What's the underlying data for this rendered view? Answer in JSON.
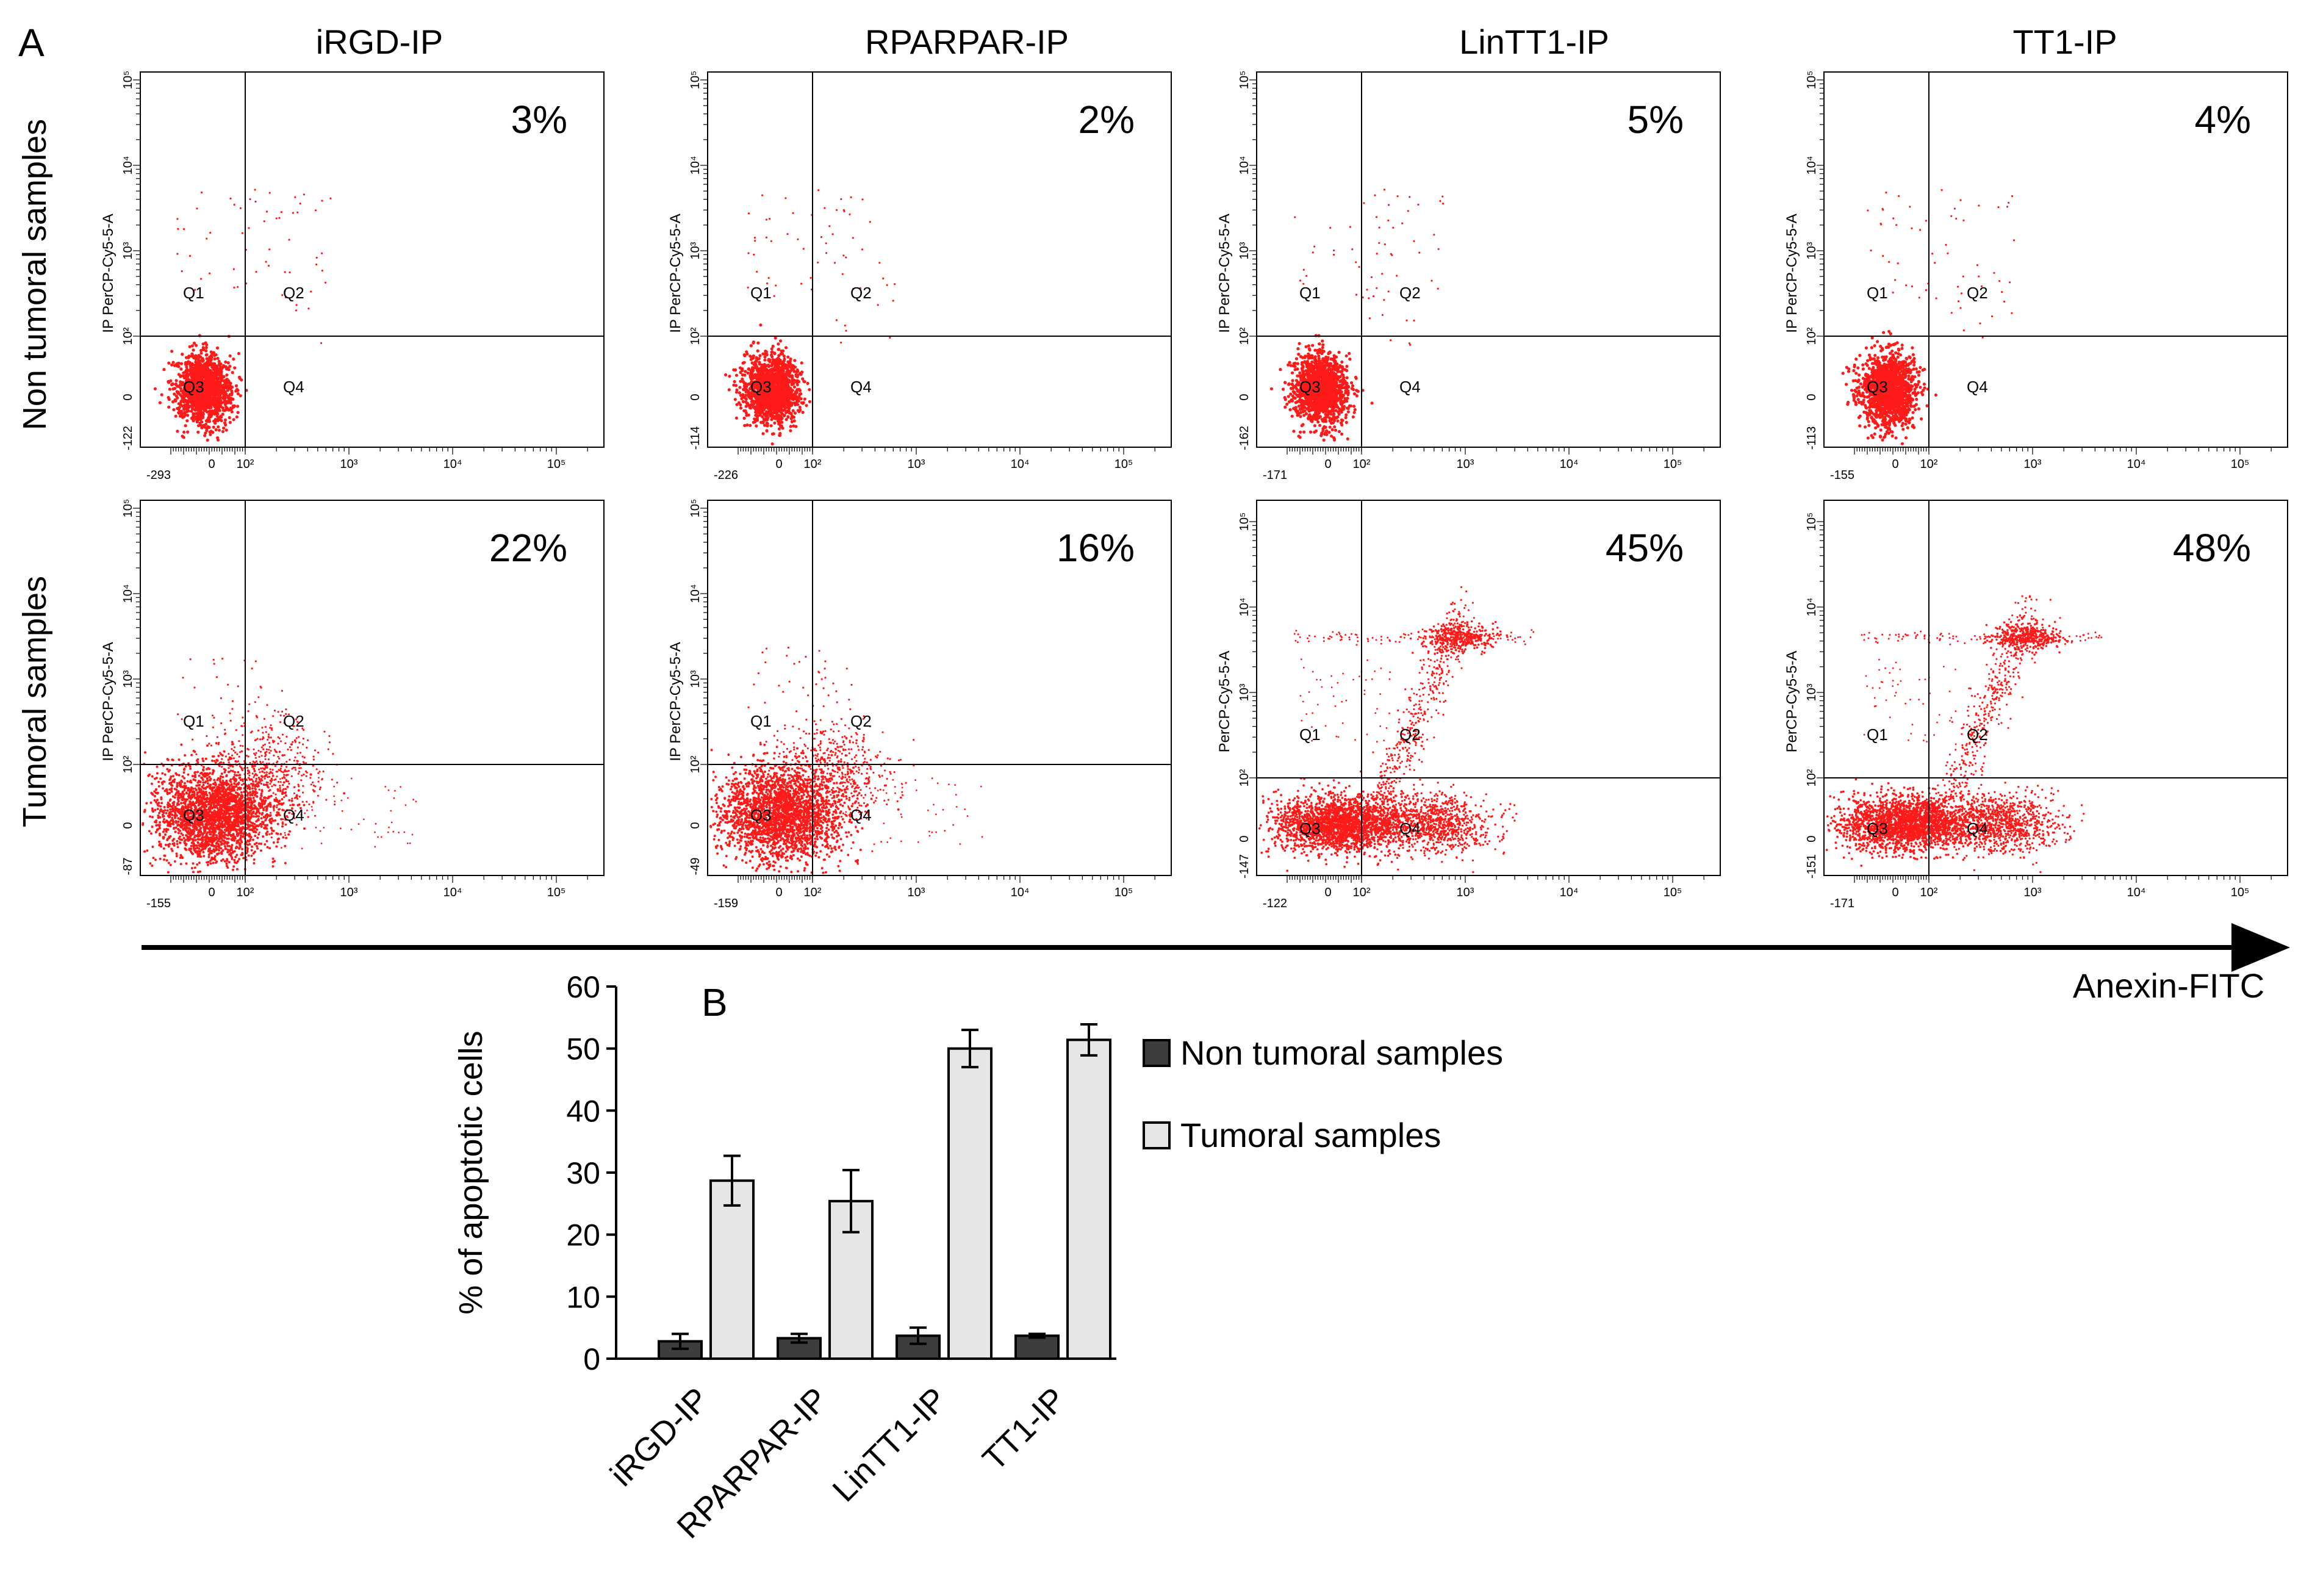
{
  "panel_a": {
    "letter": "A",
    "columns": [
      "iRGD-IP",
      "RPARPAR-IP",
      "LinTT1-IP",
      "TT1-IP"
    ],
    "rows": [
      "Non tumoral samples",
      "Tumoral samples"
    ],
    "x_axis_label": "Anexin-FITC",
    "x_tick_labels": [
      "10²",
      "10³",
      "10⁴",
      "10⁵"
    ],
    "y_tick_labels": [
      "10²",
      "10³",
      "10⁴",
      "10⁵"
    ],
    "quadrants": [
      "Q1",
      "Q2",
      "Q3",
      "Q4"
    ],
    "plots": [
      {
        "row": 0,
        "col": 0,
        "pct": "3%",
        "ylabel": "IP PerCP-Cy5-5-A",
        "xmin": "-293",
        "ymin": "-122",
        "pattern": "nontumor"
      },
      {
        "row": 0,
        "col": 1,
        "pct": "2%",
        "ylabel": "IP PerCP-Cy5-5-A",
        "xmin": "-226",
        "ymin": "-114",
        "pattern": "nontumor"
      },
      {
        "row": 0,
        "col": 2,
        "pct": "5%",
        "ylabel": "IP PerCP-Cy5-5-A",
        "xmin": "-171",
        "ymin": "-162",
        "pattern": "nontumor"
      },
      {
        "row": 0,
        "col": 3,
        "pct": "4%",
        "ylabel": "IP PerCP-Cy5-5-A",
        "xmin": "-155",
        "ymin": "-113",
        "pattern": "nontumor"
      },
      {
        "row": 1,
        "col": 0,
        "pct": "22%",
        "ylabel": "IP PerCP-Cy5-5-A",
        "xmin": "-155",
        "ymin": "-87",
        "pattern": "tumor_low"
      },
      {
        "row": 1,
        "col": 1,
        "pct": "16%",
        "ylabel": "IP PerCP-Cy5-5-A",
        "xmin": "-159",
        "ymin": "-49",
        "pattern": "tumor_low"
      },
      {
        "row": 1,
        "col": 2,
        "pct": "45%",
        "ylabel": "PerCP-Cy5-5-A",
        "xmin": "-122",
        "ymin": "-147",
        "pattern": "tumor_high"
      },
      {
        "row": 1,
        "col": 3,
        "pct": "48%",
        "ylabel": "PerCP-Cy5-5-A",
        "xmin": "-171",
        "ymin": "-151",
        "pattern": "tumor_high"
      }
    ]
  },
  "chart_data": {
    "type": "bar",
    "panel_letter": "B",
    "title": "",
    "xlabel": "",
    "ylabel": "% of apoptotic cells",
    "ylim": [
      0,
      60
    ],
    "yticks": [
      0,
      10,
      20,
      30,
      40,
      50,
      60
    ],
    "categories": [
      "iRGD-IP",
      "RPARPAR-IP",
      "LinTT1-IP",
      "TT1-IP"
    ],
    "series": [
      {
        "name": "Non tumoral samples",
        "color": "#3d3d3d",
        "values": [
          2.8,
          3.3,
          3.7,
          3.7
        ],
        "errors": [
          1.2,
          0.7,
          1.3,
          0.3
        ]
      },
      {
        "name": "Tumoral samples",
        "color": "#e6e6e6",
        "values": [
          28.7,
          25.4,
          50.0,
          51.4
        ],
        "errors": [
          4.0,
          5.0,
          3.0,
          2.5
        ]
      }
    ],
    "legend_position": "right"
  }
}
